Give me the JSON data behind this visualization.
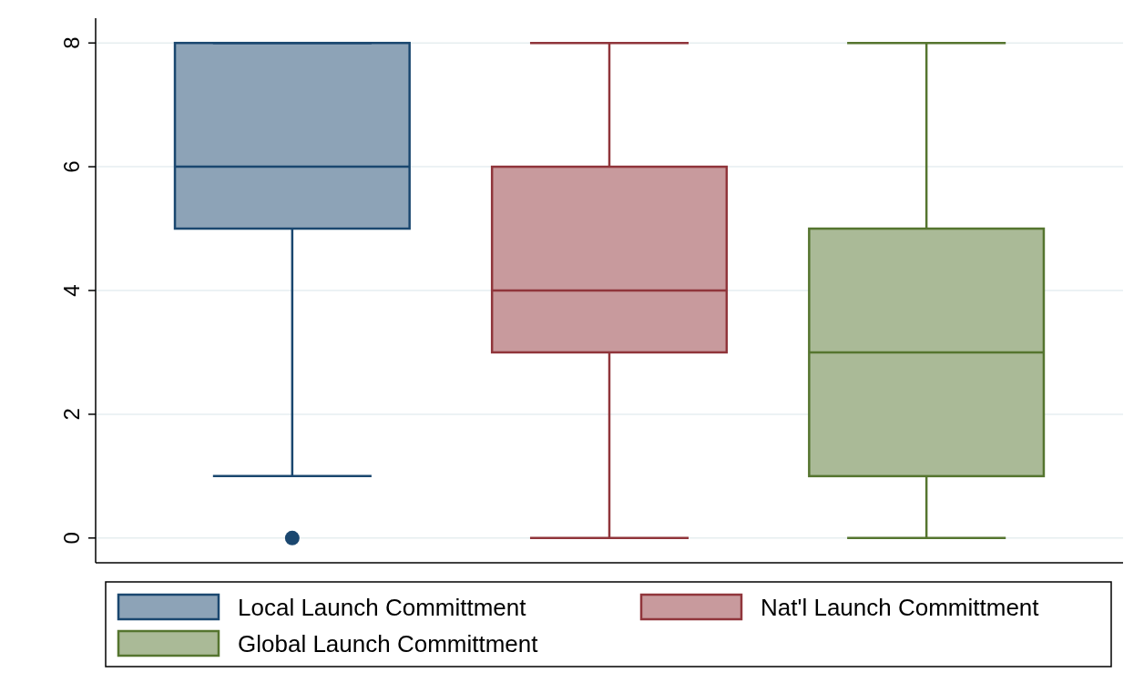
{
  "chart_data": {
    "type": "box",
    "categories": [
      null,
      null,
      null
    ],
    "series": [
      {
        "name": "Local Launch Committment",
        "color": "#1a476f",
        "boxes": [
          {
            "low": 1,
            "q1": 5,
            "median": 6,
            "q3": 8,
            "high": 8,
            "outliers": [
              0
            ]
          },
          null,
          null
        ]
      },
      {
        "name": "Nat'l Launch Committment",
        "color": "#90353b",
        "boxes": [
          null,
          {
            "low": 0,
            "q1": 3,
            "median": 4,
            "q3": 6,
            "high": 8
          },
          null
        ]
      },
      {
        "name": "Global Launch Committment",
        "color": "#55752f",
        "boxes": [
          null,
          null,
          {
            "low": 0,
            "q1": 1,
            "median": 3,
            "q3": 5,
            "high": 8
          }
        ]
      }
    ],
    "ylim": [
      -0.4,
      8.4
    ],
    "yticks": [
      0,
      2,
      4,
      6,
      8
    ],
    "grid": "y",
    "legend": "bottom",
    "tick_labels": "y"
  }
}
